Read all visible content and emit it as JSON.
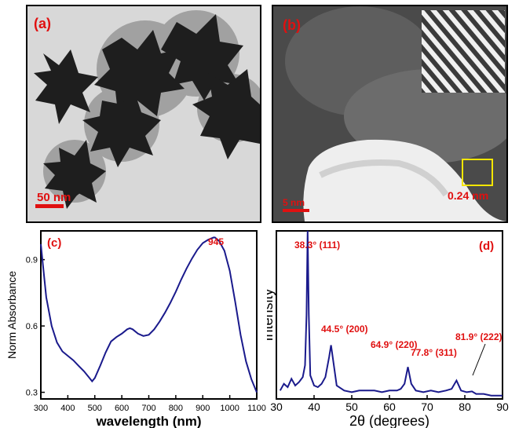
{
  "figure": {
    "panel_a": {
      "label": "(a)",
      "scale_bar": "50 nm"
    },
    "panel_b": {
      "label": "(b)",
      "scale_bar": "5 nm",
      "lattice_spacing": "0.24 nm"
    },
    "panel_c": {
      "label": "(c)"
    },
    "panel_d": {
      "label": "(d)"
    }
  },
  "colors": {
    "series": "#1a1a8c",
    "annotation": "#e01010"
  },
  "chart_data": [
    {
      "type": "line",
      "panel": "(c)",
      "xlabel": "wavelength (nm)",
      "ylabel": "Norm Absorbance",
      "xlim": [
        300,
        1100
      ],
      "ylim": [
        0.27,
        1.03
      ],
      "xticks": [
        300,
        400,
        500,
        600,
        700,
        800,
        900,
        1000,
        1100
      ],
      "yticks": [
        0.3,
        0.6,
        0.9
      ],
      "annotations": [
        {
          "text": "945",
          "x": 945
        }
      ],
      "series": [
        {
          "x": [
            300,
            320,
            340,
            360,
            380,
            400,
            420,
            440,
            460,
            480,
            490,
            500,
            520,
            540,
            560,
            580,
            600,
            620,
            630,
            640,
            660,
            680,
            700,
            720,
            740,
            760,
            780,
            800,
            820,
            840,
            860,
            880,
            900,
            920,
            940,
            945,
            960,
            980,
            1000,
            1020,
            1040,
            1060,
            1080,
            1100
          ],
          "y": [
            0.97,
            0.73,
            0.6,
            0.525,
            0.485,
            0.465,
            0.445,
            0.42,
            0.395,
            0.365,
            0.35,
            0.365,
            0.42,
            0.48,
            0.53,
            0.55,
            0.565,
            0.585,
            0.59,
            0.585,
            0.565,
            0.555,
            0.56,
            0.585,
            0.62,
            0.66,
            0.705,
            0.755,
            0.81,
            0.86,
            0.905,
            0.945,
            0.975,
            0.99,
            1.0,
            1.0,
            0.985,
            0.94,
            0.85,
            0.71,
            0.56,
            0.44,
            0.36,
            0.3
          ]
        }
      ]
    },
    {
      "type": "line",
      "panel": "(d)",
      "xlabel": "2θ (degrees)",
      "ylabel": "Intensity",
      "xlim": [
        30,
        90
      ],
      "ylim": [
        0,
        1.0
      ],
      "xticks": [
        30,
        40,
        50,
        60,
        70,
        80,
        90
      ],
      "annotations": [
        {
          "text": "38.3° (111)",
          "x": 38.3
        },
        {
          "text": "44.5° (200)",
          "x": 44.5
        },
        {
          "text": "64.9° (220)",
          "x": 64.9
        },
        {
          "text": "77.8° (311)",
          "x": 77.8
        },
        {
          "text": "81.9° (222)",
          "x": 81.9
        }
      ],
      "series": [
        {
          "x": [
            31,
            32,
            33,
            34,
            35,
            36,
            37,
            37.6,
            38.0,
            38.3,
            38.6,
            39.0,
            40,
            41,
            42,
            43,
            44,
            44.5,
            45,
            46,
            48,
            50,
            52,
            54,
            56,
            58,
            60,
            62,
            63,
            64,
            64.9,
            65.8,
            67,
            69,
            71,
            73,
            75,
            76.5,
            77.8,
            79,
            80.5,
            81.9,
            83,
            85,
            87,
            89,
            90
          ],
          "y": [
            0.05,
            0.09,
            0.07,
            0.12,
            0.08,
            0.1,
            0.13,
            0.2,
            0.5,
            1.0,
            0.5,
            0.14,
            0.08,
            0.07,
            0.09,
            0.13,
            0.25,
            0.32,
            0.24,
            0.08,
            0.05,
            0.04,
            0.05,
            0.05,
            0.05,
            0.04,
            0.05,
            0.05,
            0.06,
            0.09,
            0.19,
            0.09,
            0.05,
            0.04,
            0.05,
            0.04,
            0.05,
            0.06,
            0.11,
            0.05,
            0.04,
            0.045,
            0.03,
            0.03,
            0.02,
            0.02,
            0.02
          ]
        }
      ]
    }
  ]
}
